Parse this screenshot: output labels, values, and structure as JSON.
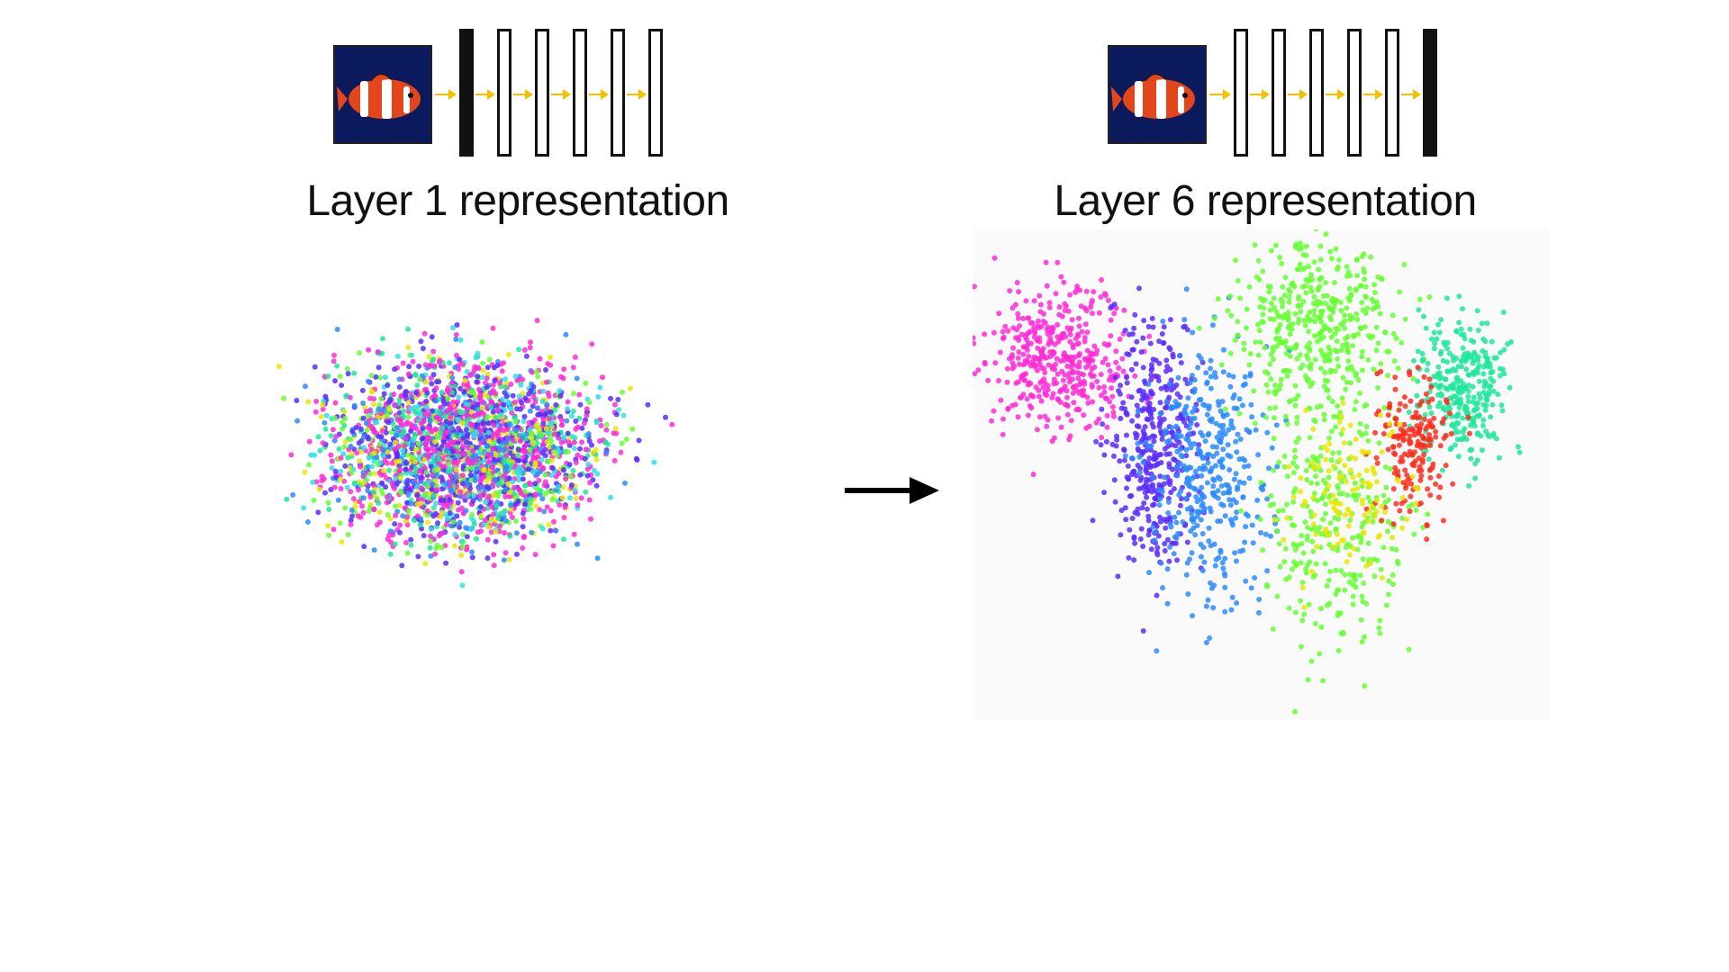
{
  "panels": [
    {
      "caption": "Layer 1 representation",
      "highlighted_layer": 1,
      "layer_count": 6
    },
    {
      "caption": "Layer 6 representation",
      "highlighted_layer": 6,
      "layer_count": 6
    }
  ],
  "colors": {
    "active_layer": "#111111",
    "flow_arrow": "#f2c200",
    "thumb_bg": "#0b1a5c",
    "clusters": [
      "#ff2bd6",
      "#5b2bff",
      "#2b8bff",
      "#1fe89a",
      "#66ff33",
      "#e8e800",
      "#ff2b1f",
      "#2ee0e8"
    ]
  },
  "icons": {
    "input_image": "clownfish-icon",
    "transition": "right-arrow-icon"
  }
}
